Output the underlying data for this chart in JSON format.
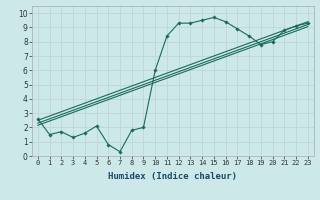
{
  "xlabel": "Humidex (Indice chaleur)",
  "bg_color": "#cce8e8",
  "grid_color": "#c0d8d8",
  "line_color": "#1a6b5a",
  "xlim": [
    -0.5,
    23.5
  ],
  "ylim": [
    0,
    10.5
  ],
  "xticks": [
    0,
    1,
    2,
    3,
    4,
    5,
    6,
    7,
    8,
    9,
    10,
    11,
    12,
    13,
    14,
    15,
    16,
    17,
    18,
    19,
    20,
    21,
    22,
    23
  ],
  "yticks": [
    0,
    1,
    2,
    3,
    4,
    5,
    6,
    7,
    8,
    9,
    10
  ],
  "line1_x": [
    0,
    1,
    2,
    3,
    4,
    5,
    6,
    7,
    8,
    9,
    10,
    11,
    12,
    13,
    14,
    15,
    16,
    17,
    18,
    19,
    20,
    21,
    22,
    23
  ],
  "line1_y": [
    2.6,
    1.5,
    1.7,
    1.3,
    1.6,
    2.1,
    0.8,
    0.3,
    1.8,
    2.0,
    6.0,
    8.4,
    9.3,
    9.3,
    9.5,
    9.7,
    9.4,
    8.9,
    8.4,
    7.8,
    8.0,
    8.8,
    9.1,
    9.3
  ],
  "line2_x": [
    0,
    23
  ],
  "line2_y": [
    2.5,
    9.4
  ],
  "line3_x": [
    0,
    23
  ],
  "line3_y": [
    2.3,
    9.2
  ],
  "line4_x": [
    0,
    23
  ],
  "line4_y": [
    2.15,
    9.05
  ],
  "xlabel_fontsize": 6.5,
  "xlabel_color": "#1a4a6a",
  "tick_fontsize_x": 5.0,
  "tick_fontsize_y": 5.5
}
